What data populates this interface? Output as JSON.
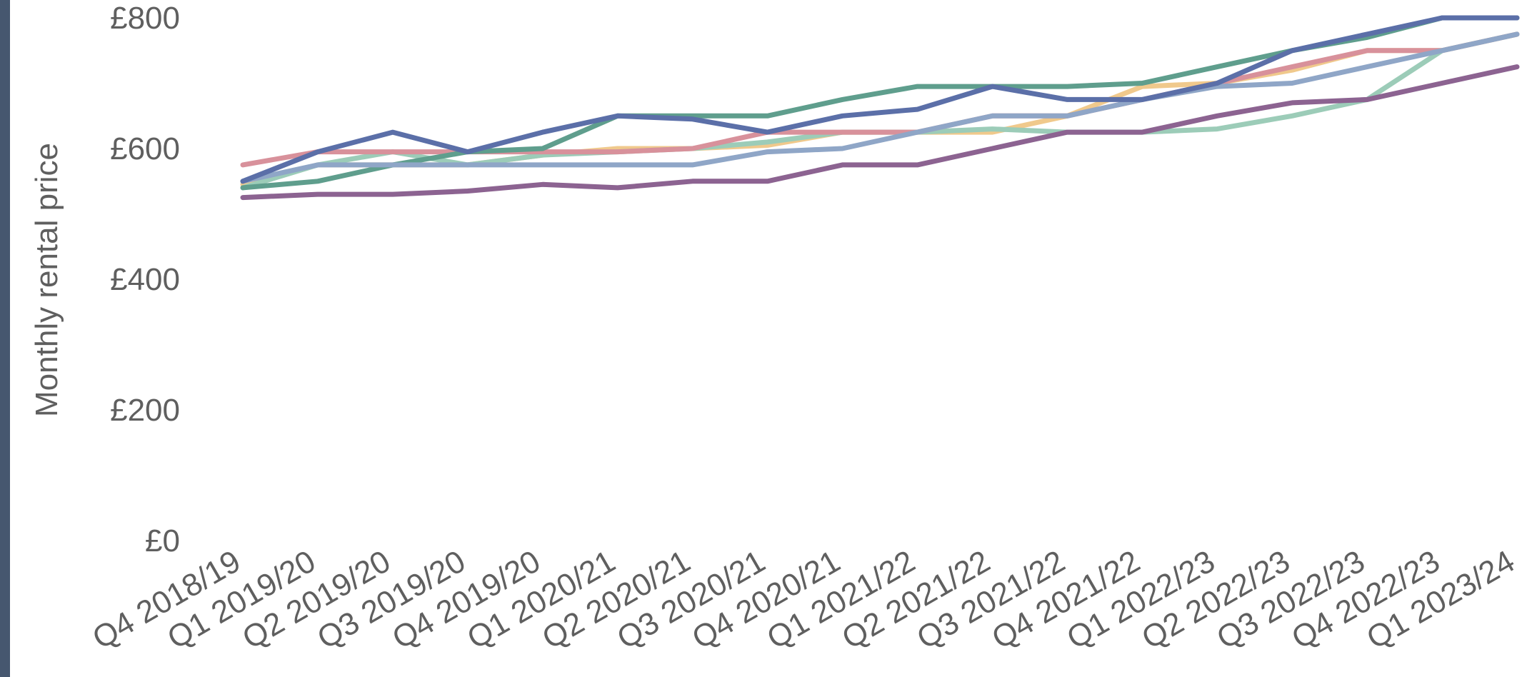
{
  "chart_data": {
    "type": "line",
    "title": "",
    "xlabel": "",
    "ylabel": "Monthly rental price",
    "ylim": [
      0,
      800
    ],
    "yticks": [
      0,
      200,
      400,
      600,
      800
    ],
    "ytick_labels": [
      "£0",
      "£200",
      "£400",
      "£600",
      "£800"
    ],
    "grid": false,
    "legend": "none",
    "categories": [
      "Q4 2018/19",
      "Q1 2019/20",
      "Q2 2019/20",
      "Q3 2019/20",
      "Q4 2019/20",
      "Q1 2020/21",
      "Q2 2020/21",
      "Q3 2020/21",
      "Q4 2020/21",
      "Q1 2021/22",
      "Q2 2021/22",
      "Q3 2021/22",
      "Q4 2021/22",
      "Q1 2022/23",
      "Q2 2022/23",
      "Q3 2022/23",
      "Q4 2022/23",
      "Q1 2023/24"
    ],
    "series": [
      {
        "color": "#f0c98c",
        "values": [
          545,
          575,
          575,
          575,
          590,
          600,
          600,
          605,
          625,
          625,
          625,
          650,
          695,
          700,
          720,
          750,
          750,
          775
        ]
      },
      {
        "color": "#9cccb8",
        "values": [
          540,
          575,
          595,
          575,
          590,
          595,
          600,
          610,
          625,
          625,
          630,
          625,
          625,
          630,
          650,
          675,
          750,
          775
        ]
      },
      {
        "color": "#d8919b",
        "values": [
          575,
          595,
          595,
          595,
          595,
          595,
          600,
          625,
          625,
          625,
          650,
          650,
          675,
          700,
          725,
          750,
          750,
          775
        ]
      },
      {
        "color": "#5f9e8d",
        "values": [
          540,
          550,
          575,
          595,
          600,
          650,
          650,
          650,
          675,
          695,
          695,
          695,
          700,
          725,
          750,
          770,
          800,
          800
        ]
      },
      {
        "color": "#8fa6c7",
        "values": [
          550,
          575,
          575,
          575,
          575,
          575,
          575,
          595,
          600,
          625,
          650,
          650,
          675,
          695,
          700,
          725,
          750,
          775
        ]
      },
      {
        "color": "#8c6391",
        "values": [
          525,
          530,
          530,
          535,
          545,
          540,
          550,
          550,
          575,
          575,
          600,
          625,
          625,
          650,
          670,
          675,
          700,
          725
        ]
      },
      {
        "color": "#5b6fa8",
        "values": [
          550,
          595,
          625,
          595,
          625,
          650,
          645,
          625,
          650,
          660,
          695,
          675,
          675,
          700,
          750,
          775,
          800,
          800
        ]
      }
    ]
  }
}
